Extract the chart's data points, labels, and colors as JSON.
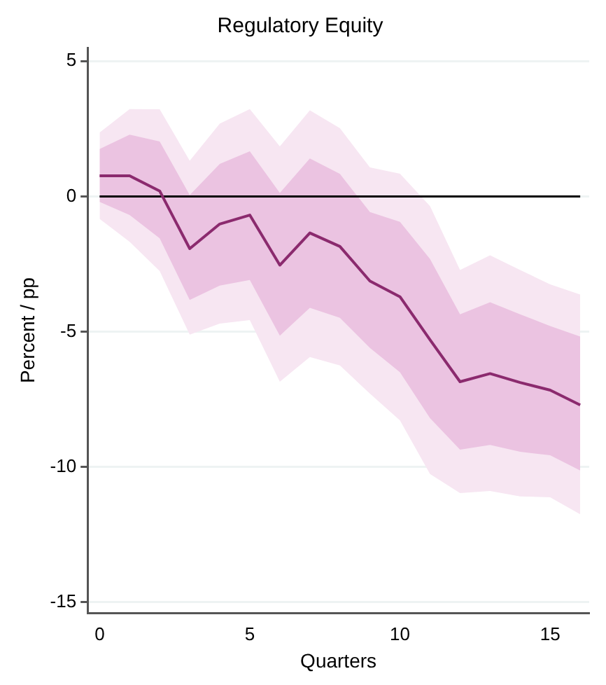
{
  "chart_data": {
    "type": "line",
    "title": "Regulatory Equity",
    "xlabel": "Quarters",
    "ylabel": "Percent / pp",
    "x": [
      0,
      1,
      2,
      3,
      4,
      5,
      6,
      7,
      8,
      9,
      10,
      11,
      12,
      13,
      14,
      15,
      16
    ],
    "series": [
      {
        "color": "#f7e6f2",
        "values": [
          null,
          null,
          null,
          null,
          null,
          null,
          null,
          null,
          null,
          null,
          null,
          null,
          null,
          null,
          null,
          null,
          null
        ],
        "lower": [
          -0.83,
          -1.68,
          -2.76,
          -5.11,
          -4.7,
          -4.57,
          -6.85,
          -5.94,
          -6.25,
          -7.29,
          -8.28,
          -10.26,
          -10.97,
          -10.89,
          -11.09,
          -11.12,
          -11.75
        ],
        "upper": [
          2.36,
          3.23,
          3.22,
          1.32,
          2.69,
          3.23,
          1.85,
          3.18,
          2.52,
          1.07,
          0.84,
          -0.36,
          -2.72,
          -2.18,
          -2.72,
          -3.25,
          -3.63
        ]
      },
      {
        "color": "#ebc3e1",
        "values": [
          null,
          null,
          null,
          null,
          null,
          null,
          null,
          null,
          null,
          null,
          null,
          null,
          null,
          null,
          null,
          null,
          null
        ],
        "lower": [
          -0.2,
          -0.69,
          -1.55,
          -3.83,
          -3.3,
          -3.09,
          -5.15,
          -4.12,
          -4.49,
          -5.6,
          -6.5,
          -8.2,
          -9.36,
          -9.19,
          -9.44,
          -9.57,
          -10.13
        ],
        "upper": [
          1.75,
          2.28,
          2.03,
          0.05,
          1.2,
          1.67,
          0.13,
          1.4,
          0.83,
          -0.58,
          -0.94,
          -2.31,
          -4.36,
          -3.91,
          -4.36,
          -4.79,
          -5.18
        ]
      },
      {
        "color": "#8b2a6e",
        "values": [
          0.76,
          0.76,
          0.2,
          -1.93,
          -1.02,
          -0.69,
          -2.54,
          -1.35,
          -1.85,
          -3.13,
          -3.71,
          -5.3,
          -6.85,
          -6.55,
          -6.88,
          -7.16,
          -7.71
        ]
      }
    ],
    "xlim": [
      -0.4,
      16.3
    ],
    "xticks": [
      0,
      5,
      10,
      15
    ],
    "ylim": [
      -15.4,
      5.5
    ],
    "yticks": [
      -15,
      -10,
      -5,
      0,
      5
    ],
    "ref_lines": [
      {
        "axis": "y",
        "value": 0,
        "color": "#000000"
      }
    ],
    "grid": "y",
    "legend": false,
    "marker": "none",
    "line_style": "solid"
  }
}
